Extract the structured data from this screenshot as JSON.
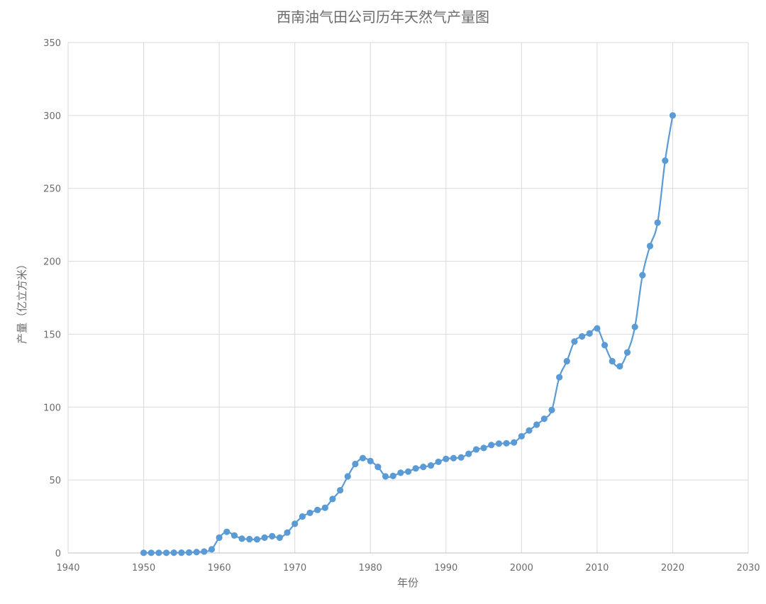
{
  "chart_data": {
    "type": "line",
    "title": "西南油气田公司历年天然气产量图",
    "xlabel": "年份",
    "ylabel": "产量（亿立方米）",
    "xlim": [
      1940,
      2030
    ],
    "ylim": [
      0,
      350
    ],
    "x_ticks": [
      1940,
      1950,
      1960,
      1970,
      1980,
      1990,
      2000,
      2010,
      2020,
      2030
    ],
    "y_ticks": [
      0,
      50,
      100,
      150,
      200,
      250,
      300,
      350
    ],
    "grid": true,
    "color": "#5b9bd5",
    "series": [
      {
        "x": [
          1950,
          1951,
          1952,
          1953,
          1954,
          1955,
          1956,
          1957,
          1958,
          1959,
          1960,
          1961,
          1962,
          1963,
          1964,
          1965,
          1966,
          1967,
          1968,
          1969,
          1970,
          1971,
          1972,
          1973,
          1974,
          1975,
          1976,
          1977,
          1978,
          1979,
          1980,
          1981,
          1982,
          1983,
          1984,
          1985,
          1986,
          1987,
          1988,
          1989,
          1990,
          1991,
          1992,
          1993,
          1994,
          1995,
          1996,
          1997,
          1998,
          1999,
          2000,
          2001,
          2002,
          2003,
          2004,
          2005,
          2006,
          2007,
          2008,
          2009,
          2010,
          2011,
          2012,
          2013,
          2014,
          2015,
          2016,
          2017,
          2018,
          2019,
          2020
        ],
        "y": [
          0.1,
          0.1,
          0.1,
          0.1,
          0.2,
          0.2,
          0.3,
          0.6,
          1.0,
          2.5,
          10.5,
          14.5,
          12.0,
          9.8,
          9.5,
          9.3,
          10.5,
          11.5,
          10.5,
          14.0,
          20.0,
          25.0,
          27.5,
          29.5,
          31.0,
          37.0,
          43.0,
          52.5,
          61.0,
          65.0,
          63.0,
          59.0,
          52.5,
          52.8,
          55.0,
          55.8,
          58.0,
          59.0,
          60.0,
          62.5,
          64.5,
          65.0,
          65.5,
          68.0,
          71.0,
          72.0,
          74.0,
          75.0,
          75.2,
          75.8,
          80.0,
          84.0,
          88.0,
          92.0,
          98.0,
          120.5,
          131.5,
          145.0,
          148.5,
          150.5,
          154.0,
          142.5,
          131.5,
          128.0,
          137.5,
          155.0,
          190.5,
          210.5,
          226.5,
          269.0,
          300.0
        ]
      }
    ]
  }
}
